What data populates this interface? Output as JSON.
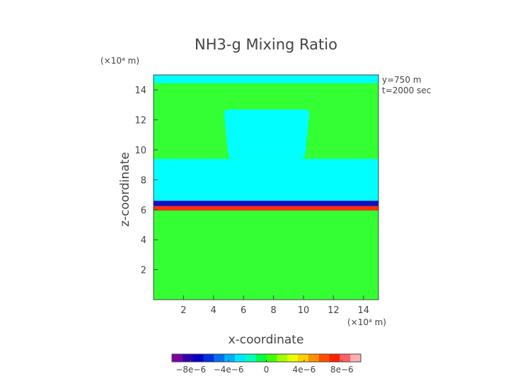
{
  "chart_data": {
    "type": "heatmap",
    "title": "NH3-g Mixing Ratio",
    "xlabel": "x-coordinate",
    "ylabel": "z-coordinate",
    "x_unit": "(×10⁴ m)",
    "y_unit": "(×10⁴ m)",
    "xlim": [
      0,
      15
    ],
    "ylim": [
      0,
      15
    ],
    "xticks": [
      2,
      4,
      6,
      8,
      10,
      12,
      14
    ],
    "yticks": [
      2,
      4,
      6,
      8,
      10,
      12,
      14
    ],
    "annotations": [
      "y=750 m",
      "t=2000 sec"
    ],
    "colorbar": {
      "min": -1e-05,
      "max": 1e-05,
      "tick_values": [
        -8e-06,
        -4e-06,
        0,
        4e-06,
        8e-06
      ],
      "tick_labels": [
        "−8e−6",
        "−4e−6",
        "0",
        "4e−6",
        "8e−6"
      ],
      "colors": [
        "#8000a0",
        "#3000b0",
        "#0000c8",
        "#0030e0",
        "#0070f0",
        "#00b0ff",
        "#00e8ff",
        "#00ffc0",
        "#00ff40",
        "#40ff00",
        "#a0ff00",
        "#e8ff00",
        "#ffd000",
        "#ff9000",
        "#ff5000",
        "#ff2000",
        "#ff6060",
        "#ffb0b0"
      ]
    },
    "regions": [
      {
        "name": "background",
        "value": 1e-06,
        "color": "#33ff33",
        "x": [
          0,
          15
        ],
        "z": [
          0,
          15
        ]
      },
      {
        "name": "top-band",
        "value": 0,
        "color": "#00ffff",
        "x": [
          0,
          15
        ],
        "z": [
          14.45,
          15
        ]
      },
      {
        "name": "middle-band",
        "value": 0,
        "color": "#00ffff",
        "x": [
          0,
          15
        ],
        "z": [
          6.6,
          9.4
        ]
      },
      {
        "name": "upper-blob",
        "value": 0,
        "color": "#00ffff",
        "x": [
          4.7,
          10.4
        ],
        "z": [
          9.4,
          12.7
        ]
      },
      {
        "name": "negative-strip",
        "value": -6e-06,
        "color": "#1010c0",
        "x": [
          0,
          15
        ],
        "z": [
          6.25,
          6.6
        ]
      },
      {
        "name": "positive-strip",
        "value": 7e-06,
        "color": "#ff3010",
        "x": [
          0,
          15
        ],
        "z": [
          5.95,
          6.25
        ]
      }
    ]
  }
}
